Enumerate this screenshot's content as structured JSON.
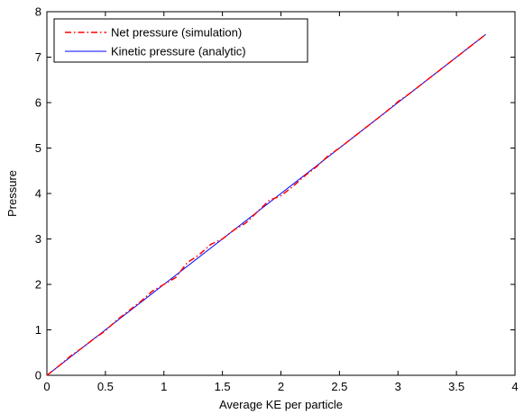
{
  "chart_data": {
    "type": "line",
    "title": "",
    "xlabel": "Average KE per particle",
    "ylabel": "Pressure",
    "xlim": [
      0,
      4
    ],
    "ylim": [
      0,
      8
    ],
    "xticks": [
      0,
      0.5,
      1,
      1.5,
      2,
      2.5,
      3,
      3.5,
      4
    ],
    "yticks": [
      0,
      1,
      2,
      3,
      4,
      5,
      6,
      7,
      8
    ],
    "xtick_labels": [
      "0",
      "0.5",
      "1",
      "1.5",
      "2",
      "2.5",
      "3",
      "3.5",
      "4"
    ],
    "ytick_labels": [
      "0",
      "1",
      "2",
      "3",
      "4",
      "5",
      "6",
      "7",
      "8"
    ],
    "grid": false,
    "legend_position": "top-left",
    "series": [
      {
        "name": "Net pressure (simulation)",
        "style": "dash-dot",
        "color": "#ff0000",
        "x": [
          0,
          0.1,
          0.2,
          0.3,
          0.4,
          0.5,
          0.6,
          0.7,
          0.8,
          0.9,
          1.0,
          1.1,
          1.2,
          1.3,
          1.4,
          1.5,
          1.6,
          1.7,
          1.8,
          1.9,
          2.0,
          2.1,
          2.2,
          2.3,
          2.4,
          2.5,
          2.6,
          2.7,
          2.8,
          2.9,
          3.0,
          3.1,
          3.2,
          3.3,
          3.4,
          3.5,
          3.6,
          3.75
        ],
        "y": [
          0,
          0.2,
          0.42,
          0.6,
          0.8,
          0.98,
          1.22,
          1.42,
          1.62,
          1.85,
          2.0,
          2.15,
          2.48,
          2.65,
          2.88,
          3.0,
          3.2,
          3.35,
          3.6,
          3.85,
          3.95,
          4.15,
          4.38,
          4.58,
          4.82,
          5.0,
          5.2,
          5.4,
          5.6,
          5.8,
          6.02,
          6.2,
          6.4,
          6.6,
          6.8,
          7.0,
          7.2,
          7.5
        ]
      },
      {
        "name": "Kinetic pressure (analytic)",
        "style": "solid",
        "color": "#0000ff",
        "x": [
          0,
          3.75
        ],
        "y": [
          0,
          7.5
        ]
      }
    ]
  }
}
